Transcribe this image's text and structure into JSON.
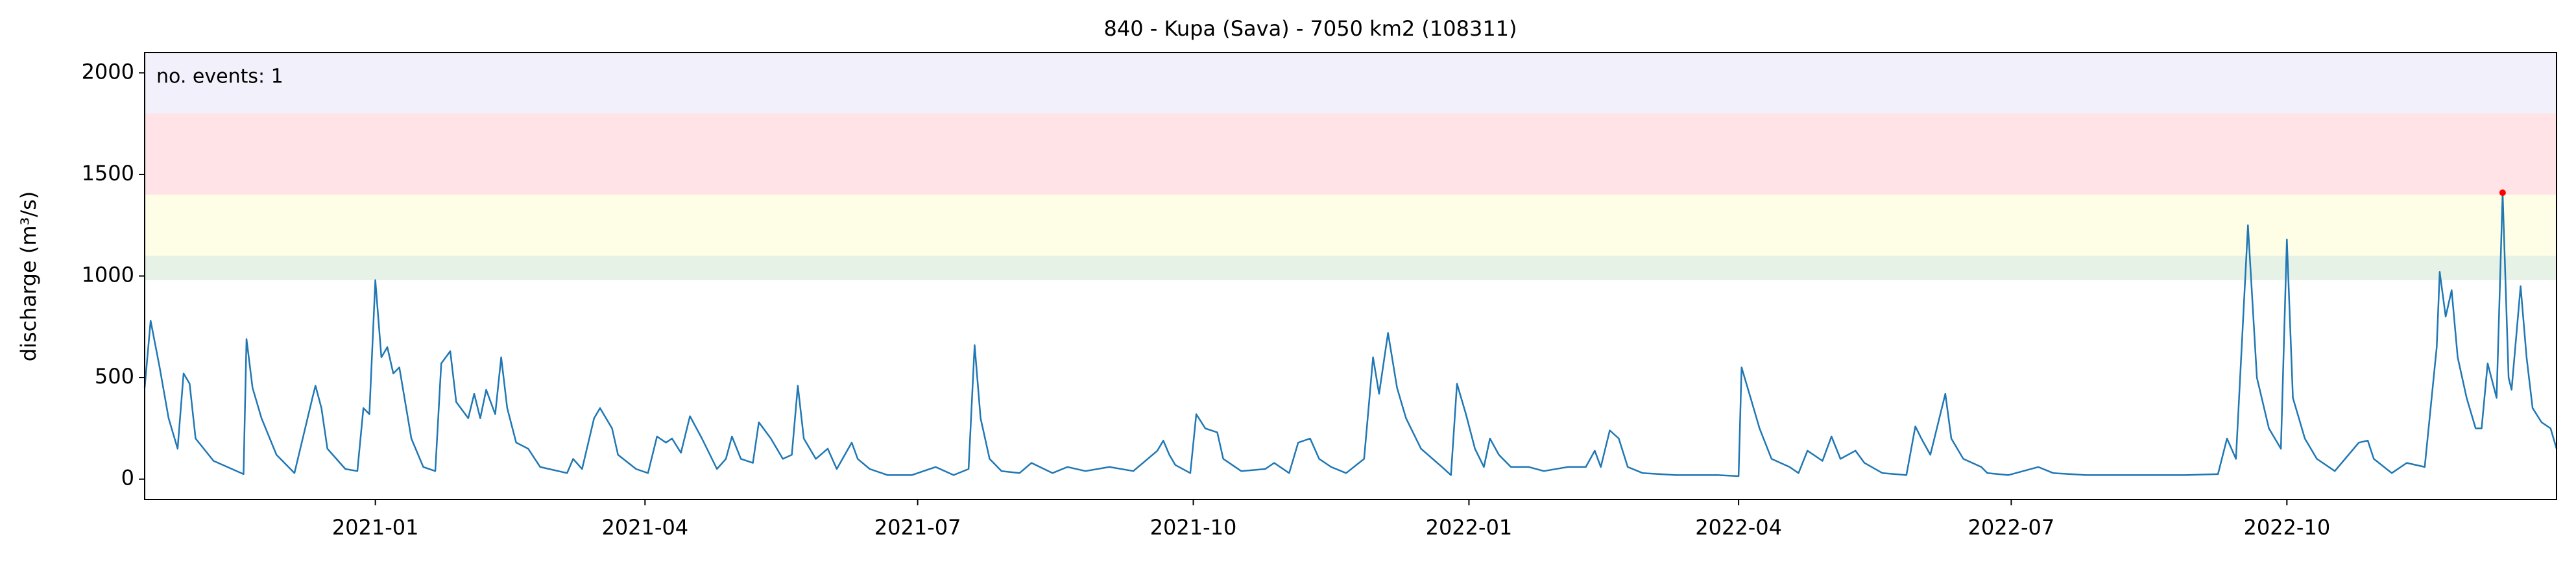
{
  "chart_data": {
    "type": "line",
    "title": "840 - Kupa (Sava) - 7050 km2 (108311)",
    "y_label": "discharge (m³/s)",
    "annotation": "no. events: 1",
    "annotation_color": "#ff0000",
    "color": "#1f77b4",
    "xlim": [
      "2020-10-16",
      "2022-12-30"
    ],
    "ylim": [
      -100,
      2100
    ],
    "yticks": [
      0,
      500,
      1000,
      1500,
      2000
    ],
    "xticks": [
      {
        "value": "2021-01-01",
        "label": "2021-01"
      },
      {
        "value": "2021-04-01",
        "label": "2021-04"
      },
      {
        "value": "2021-07-01",
        "label": "2021-07"
      },
      {
        "value": "2021-10-01",
        "label": "2021-10"
      },
      {
        "value": "2022-01-01",
        "label": "2022-01"
      },
      {
        "value": "2022-04-01",
        "label": "2022-04"
      },
      {
        "value": "2022-07-01",
        "label": "2022-07"
      },
      {
        "value": "2022-10-01",
        "label": "2022-10"
      }
    ],
    "bands": [
      {
        "range": [
          980,
          1100
        ],
        "color": "#e6f2e6"
      },
      {
        "range": [
          1100,
          1400
        ],
        "color": "#fefee6"
      },
      {
        "range": [
          1400,
          1800
        ],
        "color": "#ffe3e6"
      },
      {
        "range": [
          1800,
          2100
        ],
        "color": "#f2f0fa"
      }
    ],
    "x": [
      "2020-10-16",
      "2020-10-18",
      "2020-10-21",
      "2020-10-24",
      "2020-10-27",
      "2020-10-29",
      "2020-10-31",
      "2020-11-02",
      "2020-11-08",
      "2020-11-18",
      "2020-11-19",
      "2020-11-21",
      "2020-11-24",
      "2020-11-29",
      "2020-12-05",
      "2020-12-11",
      "2020-12-12",
      "2020-12-14",
      "2020-12-16",
      "2020-12-22",
      "2020-12-26",
      "2020-12-28",
      "2020-12-30",
      "2021-01-01",
      "2021-01-03",
      "2021-01-05",
      "2021-01-07",
      "2021-01-09",
      "2021-01-13",
      "2021-01-17",
      "2021-01-21",
      "2021-01-23",
      "2021-01-26",
      "2021-01-28",
      "2021-02-01",
      "2021-02-03",
      "2021-02-05",
      "2021-02-07",
      "2021-02-10",
      "2021-02-12",
      "2021-02-14",
      "2021-02-17",
      "2021-02-21",
      "2021-02-25",
      "2021-03-06",
      "2021-03-08",
      "2021-03-11",
      "2021-03-15",
      "2021-03-17",
      "2021-03-21",
      "2021-03-23",
      "2021-03-29",
      "2021-04-02",
      "2021-04-05",
      "2021-04-08",
      "2021-04-10",
      "2021-04-13",
      "2021-04-16",
      "2021-04-20",
      "2021-04-25",
      "2021-04-28",
      "2021-04-30",
      "2021-05-03",
      "2021-05-07",
      "2021-05-09",
      "2021-05-13",
      "2021-05-17",
      "2021-05-20",
      "2021-05-22",
      "2021-05-24",
      "2021-05-28",
      "2021-06-01",
      "2021-06-04",
      "2021-06-09",
      "2021-06-11",
      "2021-06-15",
      "2021-06-21",
      "2021-06-29",
      "2021-07-07",
      "2021-07-13",
      "2021-07-18",
      "2021-07-20",
      "2021-07-22",
      "2021-07-25",
      "2021-07-29",
      "2021-08-04",
      "2021-08-08",
      "2021-08-15",
      "2021-08-20",
      "2021-08-26",
      "2021-09-03",
      "2021-09-11",
      "2021-09-19",
      "2021-09-21",
      "2021-09-23",
      "2021-09-25",
      "2021-09-30",
      "2021-10-02",
      "2021-10-05",
      "2021-10-09",
      "2021-10-11",
      "2021-10-17",
      "2021-10-25",
      "2021-10-28",
      "2021-11-02",
      "2021-11-05",
      "2021-11-09",
      "2021-11-12",
      "2021-11-16",
      "2021-11-21",
      "2021-11-27",
      "2021-11-30",
      "2021-12-02",
      "2021-12-05",
      "2021-12-08",
      "2021-12-11",
      "2021-12-16",
      "2021-12-23",
      "2021-12-26",
      "2021-12-28",
      "2021-12-31",
      "2022-01-03",
      "2022-01-06",
      "2022-01-08",
      "2022-01-11",
      "2022-01-15",
      "2022-01-21",
      "2022-01-26",
      "2022-02-03",
      "2022-02-09",
      "2022-02-12",
      "2022-02-14",
      "2022-02-17",
      "2022-02-20",
      "2022-02-23",
      "2022-02-28",
      "2022-03-11",
      "2022-03-25",
      "2022-04-01",
      "2022-04-02",
      "2022-04-05",
      "2022-04-08",
      "2022-04-12",
      "2022-04-18",
      "2022-04-21",
      "2022-04-24",
      "2022-04-29",
      "2022-05-02",
      "2022-05-05",
      "2022-05-10",
      "2022-05-13",
      "2022-05-19",
      "2022-05-27",
      "2022-05-30",
      "2022-06-01",
      "2022-06-04",
      "2022-06-09",
      "2022-06-11",
      "2022-06-15",
      "2022-06-21",
      "2022-06-23",
      "2022-06-30",
      "2022-07-10",
      "2022-07-15",
      "2022-07-26",
      "2022-08-12",
      "2022-08-28",
      "2022-09-08",
      "2022-09-11",
      "2022-09-14",
      "2022-09-18",
      "2022-09-21",
      "2022-09-25",
      "2022-09-29",
      "2022-10-01",
      "2022-10-03",
      "2022-10-07",
      "2022-10-11",
      "2022-10-17",
      "2022-10-25",
      "2022-10-28",
      "2022-10-30",
      "2022-11-05",
      "2022-11-10",
      "2022-11-16",
      "2022-11-20",
      "2022-11-21",
      "2022-11-23",
      "2022-11-25",
      "2022-11-27",
      "2022-11-30",
      "2022-12-03",
      "2022-12-05",
      "2022-12-07",
      "2022-12-10",
      "2022-12-12",
      "2022-12-14",
      "2022-12-15",
      "2022-12-18",
      "2022-12-20",
      "2022-12-22",
      "2022-12-25",
      "2022-12-28",
      "2022-12-30"
    ],
    "values": [
      450,
      780,
      550,
      300,
      150,
      520,
      470,
      200,
      90,
      25,
      690,
      450,
      300,
      120,
      30,
      400,
      460,
      350,
      150,
      50,
      40,
      350,
      320,
      980,
      600,
      650,
      520,
      550,
      200,
      60,
      40,
      570,
      630,
      380,
      300,
      420,
      300,
      440,
      320,
      600,
      350,
      180,
      150,
      60,
      30,
      100,
      50,
      300,
      350,
      250,
      120,
      50,
      30,
      210,
      180,
      200,
      130,
      310,
      200,
      50,
      100,
      210,
      100,
      80,
      280,
      200,
      100,
      120,
      460,
      200,
      100,
      150,
      50,
      180,
      100,
      50,
      20,
      20,
      60,
      20,
      50,
      660,
      300,
      100,
      40,
      30,
      80,
      30,
      60,
      40,
      60,
      40,
      140,
      190,
      120,
      70,
      30,
      320,
      250,
      230,
      100,
      40,
      50,
      80,
      30,
      180,
      200,
      100,
      60,
      30,
      100,
      600,
      420,
      720,
      450,
      300,
      150,
      60,
      20,
      470,
      320,
      150,
      60,
      200,
      120,
      60,
      60,
      40,
      60,
      60,
      140,
      60,
      240,
      200,
      60,
      30,
      20,
      20,
      15,
      550,
      400,
      250,
      100,
      60,
      30,
      140,
      90,
      210,
      100,
      140,
      80,
      30,
      20,
      260,
      200,
      120,
      420,
      200,
      100,
      60,
      30,
      20,
      60,
      30,
      20,
      20,
      20,
      25,
      200,
      100,
      1250,
      500,
      250,
      150,
      1180,
      400,
      200,
      100,
      40,
      180,
      190,
      100,
      30,
      80,
      60,
      650,
      1020,
      800,
      930,
      600,
      400,
      250,
      250,
      570,
      400,
      1410,
      500,
      440,
      950,
      600,
      350,
      280,
      250,
      150
    ],
    "events": {
      "color": "#ff0000",
      "x": [
        "2022-12-12"
      ],
      "values": [
        1410
      ]
    }
  }
}
